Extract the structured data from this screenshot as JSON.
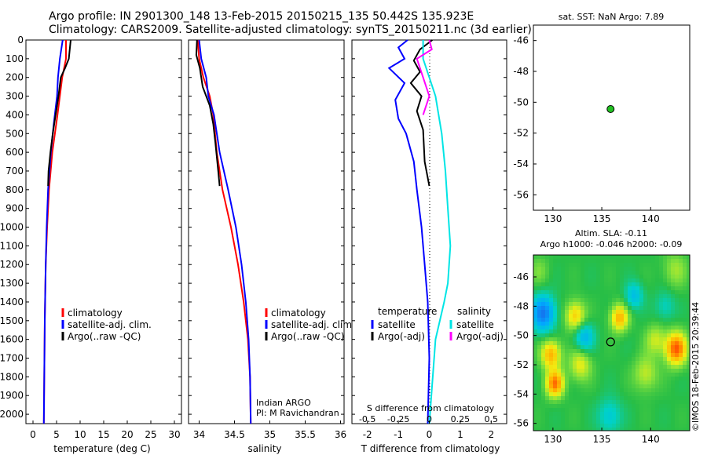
{
  "header": {
    "line1": "Argo profile: IN 2901300_148 13-Feb-2015 20150215_135 50.442S 135.923E",
    "line2": "Climatology: CARS2009. Satellite-adjusted climatology: synTS_20150211.nc (3d earlier)"
  },
  "side_label": "©IMOS 18-Feb-2015 20:39:44",
  "colors": {
    "climatology": "#ff0000",
    "satellite": "#0000ff",
    "argo": "#000000",
    "sal_satellite": "#00e5e5",
    "sal_argo": "#ff00ff",
    "marker_green": "#22c022"
  },
  "chart_data": [
    {
      "type": "line",
      "id": "temperature",
      "xlabel": "temperature (deg C)",
      "ylabel": "",
      "xlim": [
        -1.5,
        31.5
      ],
      "ylim": [
        2050,
        0
      ],
      "xticks": [
        0,
        5,
        10,
        15,
        20,
        25,
        30
      ],
      "yticks": [
        0,
        100,
        200,
        300,
        400,
        500,
        600,
        700,
        800,
        900,
        1000,
        1100,
        1200,
        1300,
        1400,
        1500,
        1600,
        1700,
        1800,
        1900,
        2000
      ],
      "legend": [
        "climatology",
        "satellite-adj. clim.",
        "Argo(..raw -QC)"
      ],
      "legend_position": "lower-center",
      "series": [
        {
          "name": "climatology",
          "color": "#ff0000",
          "points": [
            [
              7.0,
              0
            ],
            [
              7.0,
              100
            ],
            [
              6.2,
              200
            ],
            [
              5.2,
              400
            ],
            [
              4.1,
              600
            ],
            [
              3.4,
              800
            ],
            [
              3.0,
              1000
            ],
            [
              2.7,
              1200
            ],
            [
              2.5,
              1500
            ],
            [
              2.3,
              2050
            ]
          ]
        },
        {
          "name": "satellite-adj. clim.",
          "color": "#0000ff",
          "points": [
            [
              6.3,
              0
            ],
            [
              5.7,
              100
            ],
            [
              5.3,
              200
            ],
            [
              5.1,
              300
            ],
            [
              4.4,
              450
            ],
            [
              3.8,
              600
            ],
            [
              3.2,
              800
            ],
            [
              2.9,
              1000
            ],
            [
              2.7,
              1200
            ],
            [
              2.5,
              1500
            ],
            [
              2.3,
              2050
            ]
          ]
        },
        {
          "name": "Argo(..raw -QC)",
          "color": "#000000",
          "points": [
            [
              8.0,
              0
            ],
            [
              7.6,
              100
            ],
            [
              6.8,
              150
            ],
            [
              5.9,
              200
            ],
            [
              5.4,
              300
            ],
            [
              4.5,
              450
            ],
            [
              4.2,
              500
            ],
            [
              3.7,
              600
            ],
            [
              3.3,
              700
            ],
            [
              3.2,
              780
            ]
          ]
        }
      ]
    },
    {
      "type": "line",
      "id": "salinity",
      "xlabel": "salinity",
      "ylabel": "",
      "xlim": [
        33.85,
        36.05
      ],
      "xticks": [
        34,
        34.5,
        35,
        35.5,
        36
      ],
      "xticklabels": [
        "34",
        "34.5",
        "35",
        "35.5",
        "36"
      ],
      "legend": [
        "climatology",
        "satellite-adj. clim.",
        "Argo(..raw -QC)"
      ],
      "legend_position": "lower-center",
      "annotation": [
        "Indian ARGO",
        "PI: M Ravichandran"
      ],
      "series": [
        {
          "name": "climatology",
          "color": "#ff0000",
          "points": [
            [
              33.98,
              0
            ],
            [
              34.0,
              100
            ],
            [
              34.06,
              200
            ],
            [
              34.15,
              300
            ],
            [
              34.2,
              400
            ],
            [
              34.25,
              600
            ],
            [
              34.33,
              800
            ],
            [
              34.45,
              1000
            ],
            [
              34.55,
              1200
            ],
            [
              34.63,
              1400
            ],
            [
              34.69,
              1600
            ],
            [
              34.72,
              1800
            ],
            [
              34.73,
              2050
            ]
          ]
        },
        {
          "name": "satellite-adj. clim.",
          "color": "#0000ff",
          "points": [
            [
              34.0,
              0
            ],
            [
              34.03,
              100
            ],
            [
              34.1,
              200
            ],
            [
              34.13,
              300
            ],
            [
              34.21,
              400
            ],
            [
              34.29,
              600
            ],
            [
              34.41,
              800
            ],
            [
              34.52,
              1000
            ],
            [
              34.6,
              1200
            ],
            [
              34.66,
              1400
            ],
            [
              34.7,
              1600
            ],
            [
              34.72,
              1800
            ],
            [
              34.73,
              2050
            ]
          ]
        },
        {
          "name": "Argo(..raw -QC)",
          "color": "#000000",
          "points": [
            [
              33.97,
              0
            ],
            [
              33.96,
              80
            ],
            [
              34.01,
              150
            ],
            [
              34.03,
              200
            ],
            [
              34.05,
              250
            ],
            [
              34.15,
              350
            ],
            [
              34.2,
              450
            ],
            [
              34.23,
              550
            ],
            [
              34.27,
              700
            ],
            [
              34.29,
              780
            ]
          ]
        }
      ]
    },
    {
      "type": "line",
      "id": "difference",
      "xlabel": "T difference from climatology",
      "xlabel_top": "S difference from climatology",
      "xlim": [
        -2.5,
        2.5
      ],
      "xticks": [
        -2,
        -1,
        0,
        1,
        2
      ],
      "sticks": [
        -0.5,
        -0.25,
        0,
        0.25,
        0.5
      ],
      "sticklabels": [
        "-0.5",
        "-0.25",
        "0",
        "0.25",
        "0.5"
      ],
      "legend_titles": [
        "temperature",
        "salinity"
      ],
      "legend": [
        "satellite",
        "Argo(-adj)",
        "satellite",
        "Argo(-adj)"
      ],
      "series": [
        {
          "name": "satellite",
          "group": "temperature",
          "color": "#0000ff",
          "points": [
            [
              -0.7,
              0
            ],
            [
              -1.0,
              40
            ],
            [
              -0.8,
              100
            ],
            [
              -1.3,
              150
            ],
            [
              -0.8,
              230
            ],
            [
              -1.1,
              320
            ],
            [
              -1.0,
              420
            ],
            [
              -0.75,
              500
            ],
            [
              -0.5,
              650
            ],
            [
              -0.4,
              800
            ],
            [
              -0.25,
              1000
            ],
            [
              -0.15,
              1200
            ],
            [
              -0.05,
              1400
            ],
            [
              0.0,
              1700
            ],
            [
              -0.05,
              2050
            ]
          ]
        },
        {
          "name": "Argo(-adj)",
          "group": "temperature",
          "color": "#000000",
          "points": [
            [
              0.1,
              0
            ],
            [
              -0.3,
              50
            ],
            [
              -0.5,
              110
            ],
            [
              -0.3,
              170
            ],
            [
              -0.6,
              230
            ],
            [
              -0.25,
              300
            ],
            [
              -0.4,
              380
            ],
            [
              -0.2,
              480
            ],
            [
              -0.15,
              650
            ],
            [
              0.0,
              780
            ]
          ]
        },
        {
          "name": "satellite",
          "group": "salinity",
          "color": "#00e5e5",
          "points": [
            [
              -0.05,
              0
            ],
            [
              -0.05,
              100
            ],
            [
              0.0,
              200
            ],
            [
              0.05,
              300
            ],
            [
              0.1,
              500
            ],
            [
              0.13,
              700
            ],
            [
              0.15,
              900
            ],
            [
              0.17,
              1100
            ],
            [
              0.15,
              1300
            ],
            [
              0.12,
              1400
            ],
            [
              0.05,
              1600
            ],
            [
              0.0,
              2050
            ]
          ]
        },
        {
          "name": "Argo(-adj)",
          "group": "salinity",
          "color": "#ff00ff",
          "points": [
            [
              0.0,
              0
            ],
            [
              0.02,
              50
            ],
            [
              -0.1,
              100
            ],
            [
              -0.05,
              200
            ],
            [
              0.0,
              300
            ],
            [
              -0.05,
              400
            ]
          ]
        }
      ]
    },
    {
      "type": "scatter",
      "id": "location",
      "title": "sat. SST: NaN Argo: 7.89",
      "xlim": [
        128,
        144
      ],
      "ylim": [
        -57,
        -45
      ],
      "xticks": [
        130,
        135,
        140
      ],
      "yticks": [
        -46,
        -48,
        -50,
        -52,
        -54,
        -56
      ],
      "series": [
        {
          "name": "",
          "points": [
            [
              135.9,
              -50.44
            ]
          ]
        }
      ]
    },
    {
      "type": "heatmap",
      "id": "sla",
      "title_line1": "Altim. SLA: -0.11",
      "title_line2": "Argo h1000: -0.046 h2000: -0.09",
      "xlim": [
        128,
        144
      ],
      "ylim": [
        -56.5,
        -44.5
      ],
      "xticks": [
        130,
        135,
        140
      ],
      "yticks": [
        -46,
        -48,
        -50,
        -52,
        -54,
        -56
      ],
      "marker": [
        135.9,
        -50.44
      ],
      "anomalies": [
        {
          "x": 129,
          "y": -48.5,
          "v": -0.5,
          "r": 1.2
        },
        {
          "x": 129.8,
          "y": -51.3,
          "v": 0.4,
          "r": 1.0
        },
        {
          "x": 130.2,
          "y": -53.3,
          "v": 0.5,
          "r": 0.9
        },
        {
          "x": 132.3,
          "y": -48.7,
          "v": 0.35,
          "r": 1.0
        },
        {
          "x": 133.2,
          "y": -50.1,
          "v": -0.3,
          "r": 1.0
        },
        {
          "x": 132.8,
          "y": -52.0,
          "v": 0.25,
          "r": 1.1
        },
        {
          "x": 136.8,
          "y": -48.8,
          "v": 0.4,
          "r": 0.9
        },
        {
          "x": 140.5,
          "y": -50.3,
          "v": 0.2,
          "r": 1.0
        },
        {
          "x": 142.6,
          "y": -50.9,
          "v": 0.55,
          "r": 1.1
        },
        {
          "x": 139.5,
          "y": -52.6,
          "v": 0.2,
          "r": 1.2
        },
        {
          "x": 138.3,
          "y": -47.3,
          "v": -0.25,
          "r": 0.9
        },
        {
          "x": 142.5,
          "y": -45.5,
          "v": 0.15,
          "r": 1.2
        },
        {
          "x": 135.8,
          "y": -55.5,
          "v": -0.2,
          "r": 1.2
        },
        {
          "x": 128.6,
          "y": -45.6,
          "v": 0.1,
          "r": 1.0
        },
        {
          "x": 141.5,
          "y": -48.0,
          "v": -0.15,
          "r": 1.0
        }
      ]
    }
  ]
}
